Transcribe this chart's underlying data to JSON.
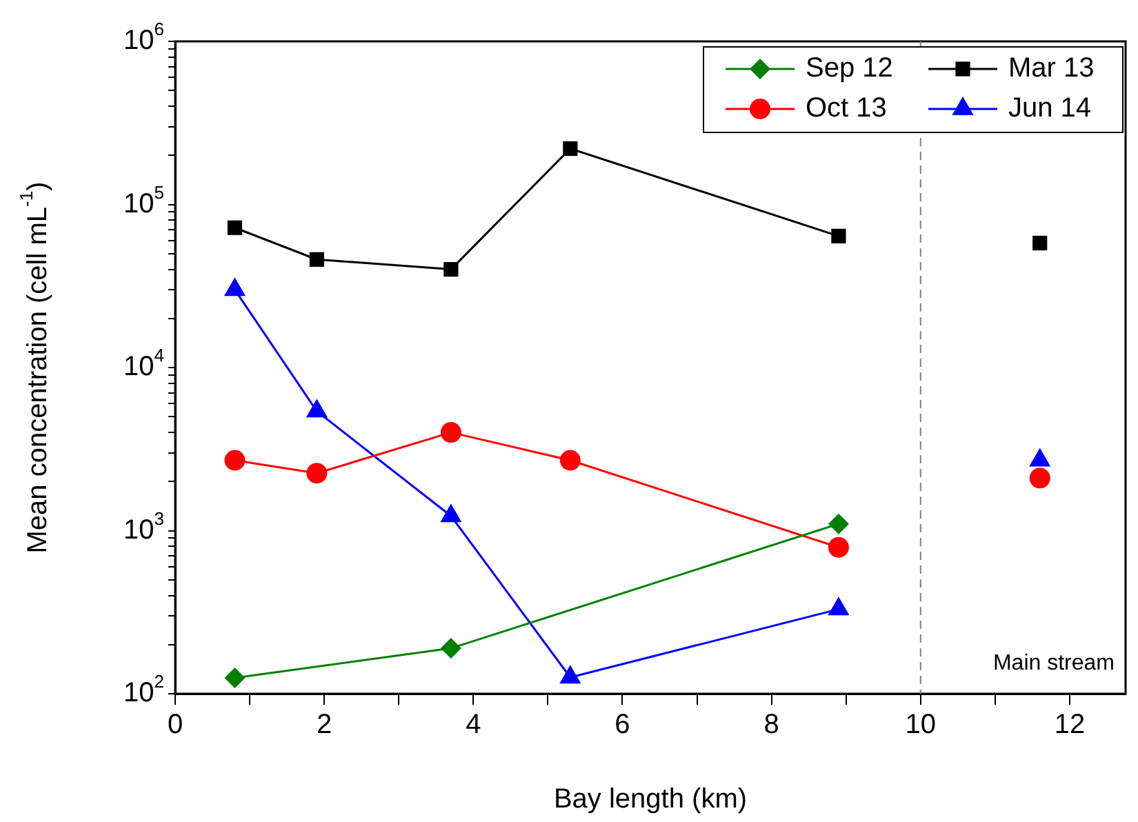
{
  "chart_data": {
    "type": "line",
    "xlabel": "Bay length (km)",
    "ylabel": "Mean concentration (cell mL$^{-1}$)",
    "xlim": [
      0,
      12.75
    ],
    "xticks": [
      0,
      {
        "value": 1,
        "label": null
      },
      2,
      {
        "value": 3,
        "label": null
      },
      4,
      {
        "value": 5,
        "label": null
      },
      6,
      {
        "value": 7,
        "label": null
      },
      8,
      {
        "value": 9,
        "label": null
      },
      10,
      {
        "value": 11,
        "label": null
      },
      12
    ],
    "ylim": [
      100,
      1000000
    ],
    "log": true,
    "yticks": [
      {
        "value": 100,
        "label": "10$^{2}$"
      },
      {
        "value": 200,
        "label": null
      },
      {
        "value": 300,
        "label": null
      },
      {
        "value": 400,
        "label": null
      },
      {
        "value": 500,
        "label": null
      },
      {
        "value": 600,
        "label": null
      },
      {
        "value": 700,
        "label": null
      },
      {
        "value": 800,
        "label": null
      },
      {
        "value": 900,
        "label": null
      },
      {
        "value": 1000,
        "label": "10$^{3}$"
      },
      {
        "value": 2000,
        "label": null
      },
      {
        "value": 3000,
        "label": null
      },
      {
        "value": 4000,
        "label": null
      },
      {
        "value": 5000,
        "label": null
      },
      {
        "value": 6000,
        "label": null
      },
      {
        "value": 7000,
        "label": null
      },
      {
        "value": 8000,
        "label": null
      },
      {
        "value": 9000,
        "label": null
      },
      {
        "value": 10000,
        "label": "10$^{4}$"
      },
      {
        "value": 20000,
        "label": null
      },
      {
        "value": 30000,
        "label": null
      },
      {
        "value": 40000,
        "label": null
      },
      {
        "value": 50000,
        "label": null
      },
      {
        "value": 60000,
        "label": null
      },
      {
        "value": 70000,
        "label": null
      },
      {
        "value": 80000,
        "label": null
      },
      {
        "value": 90000,
        "label": null
      },
      {
        "value": 100000,
        "label": "10$^{5}$"
      },
      {
        "value": 200000,
        "label": null
      },
      {
        "value": 300000,
        "label": null
      },
      {
        "value": 400000,
        "label": null
      },
      {
        "value": 500000,
        "label": null
      },
      {
        "value": 600000,
        "label": null
      },
      {
        "value": 700000,
        "label": null
      },
      {
        "value": 800000,
        "label": null
      },
      {
        "value": 900000,
        "label": null
      },
      {
        "value": 1000000,
        "label": "10$^{6}$"
      }
    ],
    "grid": false,
    "legend": "top right",
    "line_style": "solid",
    "ref_lines": [
      {
        "axis": "x",
        "value": 10,
        "color": "#808080",
        "line_style": "dashed"
      }
    ],
    "annotations": [
      "Main stream"
    ],
    "series": [
      {
        "name": "Sep 12",
        "color": "#008000",
        "marker": "diamond",
        "x": [
          0.8,
          3.7,
          8.9
        ],
        "values": [
          125,
          190,
          1100
        ]
      },
      {
        "name": "Oct 13",
        "color": "#ff0000",
        "marker": "circle",
        "x": [
          0.8,
          1.9,
          3.7,
          5.3,
          8.9
        ],
        "values": [
          2700,
          2250,
          4000,
          2700,
          790
        ]
      },
      {
        "name": "Mar 13",
        "color": "#000000",
        "marker": "square",
        "x": [
          0.8,
          1.9,
          3.7,
          5.3,
          8.9
        ],
        "values": [
          72000,
          46000,
          40000,
          220000,
          64000
        ]
      },
      {
        "name": "Jun 14",
        "color": "#0000ff",
        "marker": "triangle",
        "x": [
          0.8,
          1.9,
          3.7,
          5.3,
          8.9
        ],
        "values": [
          30000,
          5400,
          1230,
          126,
          330
        ]
      },
      {
        "type": "scatter",
        "color": "#ff0000",
        "marker": "circle",
        "x": [
          11.6
        ],
        "values": [
          2100
        ]
      },
      {
        "type": "scatter",
        "color": "#000000",
        "marker": "square",
        "x": [
          11.6
        ],
        "values": [
          58000
        ]
      },
      {
        "type": "scatter",
        "color": "#0000ff",
        "marker": "triangle",
        "x": [
          11.6
        ],
        "values": [
          2700
        ]
      }
    ]
  }
}
